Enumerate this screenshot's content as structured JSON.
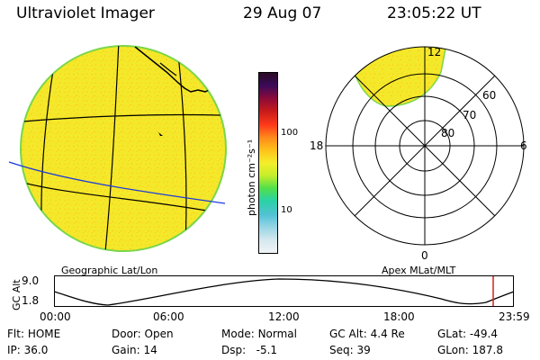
{
  "header": {
    "title": "Ultraviolet Imager",
    "date": "29 Aug 07",
    "time": "23:05:22 UT"
  },
  "colorbar": {
    "unit_label": "photon cm⁻²s⁻¹",
    "ticks": [
      "100",
      "10"
    ],
    "colors": [
      "#2a0a24",
      "#3a0a5a",
      "#8a0a3a",
      "#c41a1a",
      "#ff3a1a",
      "#ff8a1a",
      "#ffc21a",
      "#f4ee2a",
      "#c6ee2a",
      "#52e04a",
      "#2ad2a6",
      "#52c2d6",
      "#9ad6e6",
      "#d6e8ee",
      "#f0f4f6"
    ]
  },
  "geo_panel": {
    "label": "Geographic Lat/Lon",
    "fill_color": "#f4e82a",
    "edge_color": "#7ad64a",
    "land_color": "#000000",
    "grid_line_color": "#000000",
    "terminator_color": "#1a3adc"
  },
  "polar_panel": {
    "label": "Apex  MLat/MLT",
    "mlt_labels": [
      "12",
      "18",
      "6",
      "0"
    ],
    "mlat_labels": [
      "60",
      "70",
      "80"
    ],
    "patch_color": "#f4e82a"
  },
  "altitude_panel": {
    "axis_title": "GC Alt",
    "y_ticks": [
      "9.0",
      "1.8"
    ],
    "x_ticks": [
      "00:00",
      "06:00",
      "12:00",
      "18:00",
      "23:59"
    ],
    "marker_color": "#d62020"
  },
  "info": {
    "row1": [
      {
        "label": "Flt:",
        "value": "HOME"
      },
      {
        "label": "Door:",
        "value": "Open"
      },
      {
        "label": "Mode:",
        "value": "Normal"
      },
      {
        "label": "GC Alt:",
        "value": "4.4 Re"
      },
      {
        "label": "GLat:",
        "value": "-49.4"
      }
    ],
    "row2": [
      {
        "label": "IP:",
        "value": "36.0"
      },
      {
        "label": "Gain:",
        "value": "14"
      },
      {
        "label": "Dsp:",
        "value": "-5.1"
      },
      {
        "label": "Seq:",
        "value": "39"
      },
      {
        "label": "GLon:",
        "value": "187.8"
      }
    ]
  }
}
